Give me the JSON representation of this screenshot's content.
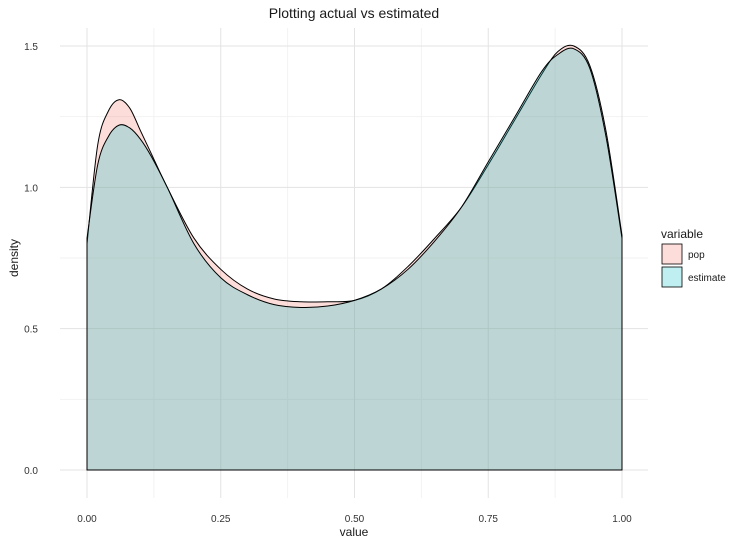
{
  "chart_data": {
    "type": "area",
    "title": "Plotting actual vs estimated",
    "xlabel": "value",
    "ylabel": "density",
    "xlim": [
      0,
      1
    ],
    "ylim": [
      0,
      1.5
    ],
    "x_ticks": [
      0,
      0.25,
      0.5,
      0.75,
      1
    ],
    "x_tick_labels": [
      "0.00",
      "0.25",
      "0.50",
      "0.75",
      "1.00"
    ],
    "y_ticks": [
      0,
      0.5,
      1,
      1.5
    ],
    "y_tick_labels": [
      "0.0",
      "0.5",
      "1.0",
      "1.5"
    ],
    "grid": true,
    "legend": {
      "title": "variable",
      "position": "right"
    },
    "series": [
      {
        "name": "pop",
        "color": "#F8766D",
        "x": [
          0,
          0.02,
          0.04,
          0.06,
          0.08,
          0.1,
          0.12,
          0.15,
          0.2,
          0.25,
          0.3,
          0.35,
          0.4,
          0.45,
          0.5,
          0.55,
          0.6,
          0.65,
          0.7,
          0.75,
          0.8,
          0.85,
          0.88,
          0.91,
          0.94,
          0.97,
          1.0
        ],
        "values": [
          0.8,
          1.15,
          1.27,
          1.31,
          1.28,
          1.2,
          1.12,
          1.0,
          0.82,
          0.71,
          0.64,
          0.605,
          0.595,
          0.595,
          0.6,
          0.64,
          0.72,
          0.82,
          0.93,
          1.08,
          1.24,
          1.4,
          1.48,
          1.5,
          1.43,
          1.2,
          0.83
        ]
      },
      {
        "name": "estimate",
        "color": "#00BFC4",
        "x": [
          0,
          0.02,
          0.04,
          0.06,
          0.08,
          0.1,
          0.12,
          0.15,
          0.2,
          0.25,
          0.3,
          0.35,
          0.4,
          0.45,
          0.5,
          0.55,
          0.6,
          0.65,
          0.7,
          0.75,
          0.8,
          0.85,
          0.88,
          0.91,
          0.94,
          0.97,
          1.0
        ],
        "values": [
          0.82,
          1.08,
          1.18,
          1.22,
          1.21,
          1.17,
          1.11,
          1.0,
          0.8,
          0.68,
          0.62,
          0.585,
          0.575,
          0.58,
          0.6,
          0.64,
          0.71,
          0.81,
          0.93,
          1.09,
          1.25,
          1.41,
          1.47,
          1.49,
          1.42,
          1.18,
          0.82
        ]
      }
    ]
  }
}
